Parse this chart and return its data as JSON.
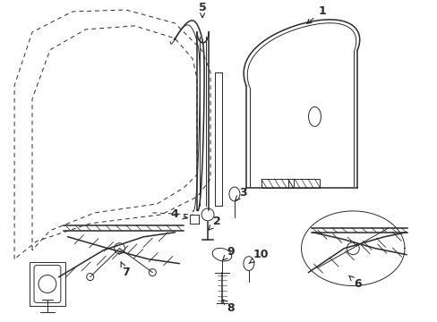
{
  "background_color": "#ffffff",
  "fig_width": 4.89,
  "fig_height": 3.6,
  "dpi": 100,
  "line_color": "#2a2a2a",
  "label_fontsize": 9
}
